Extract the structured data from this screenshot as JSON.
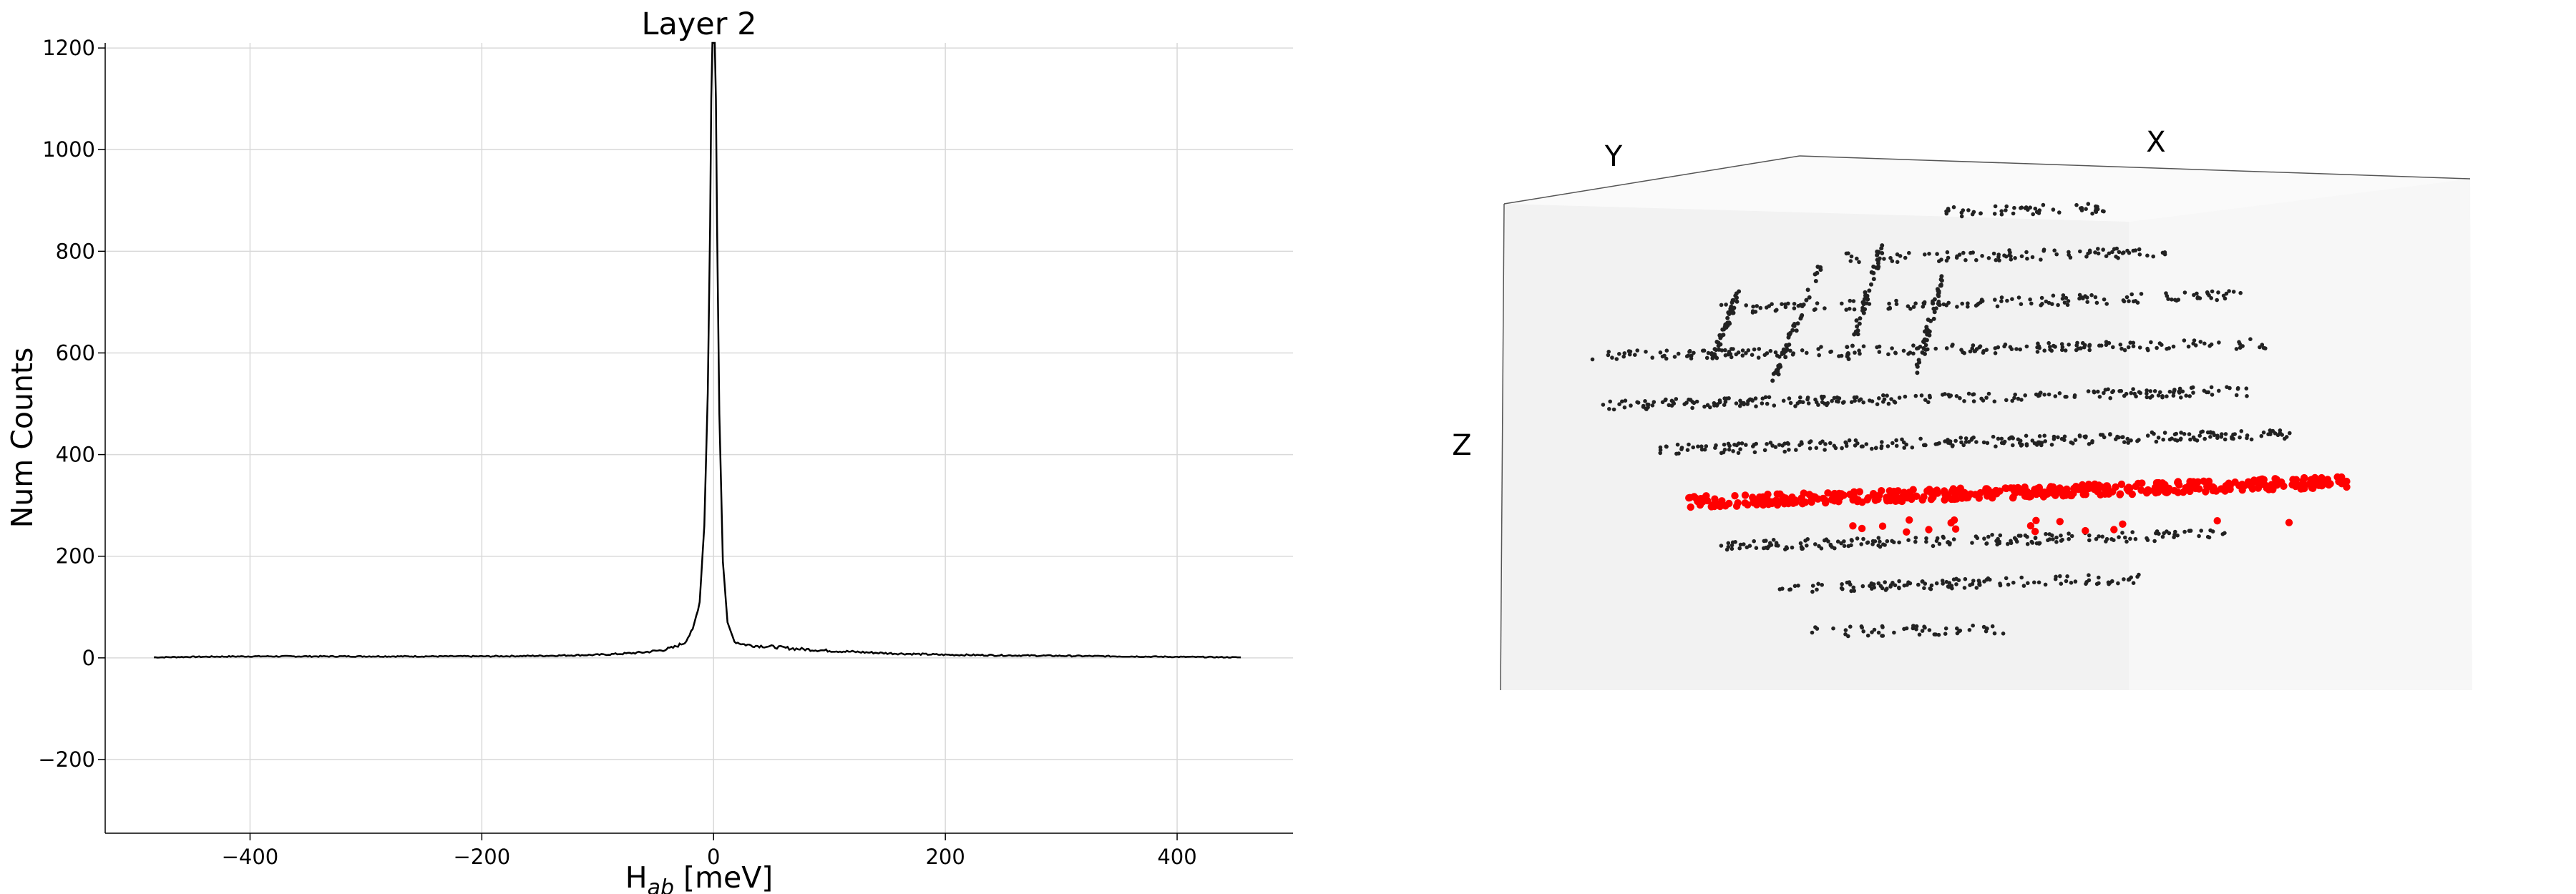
{
  "chart_data": [
    {
      "type": "line",
      "title": "Layer 2",
      "xlabel_main": "H",
      "xlabel_sub": "ab",
      "xlabel_unit": " [meV]",
      "ylabel": "Num Counts",
      "xlim": [
        -525,
        500
      ],
      "ylim": [
        -345,
        1210
      ],
      "xticks": [
        -400,
        -200,
        0,
        200,
        400
      ],
      "yticks": [
        -200,
        0,
        200,
        400,
        600,
        800,
        1000,
        1200
      ],
      "xtick_labels": [
        "−400",
        "−200",
        "0",
        "200",
        "400"
      ],
      "ytick_labels": [
        "−200",
        "0",
        "200",
        "400",
        "600",
        "800",
        "1000",
        "1200"
      ],
      "grid": true,
      "line_color": "#000000",
      "series": [
        {
          "x": [
            -483,
            -450,
            -400,
            -350,
            -300,
            -250,
            -200,
            -150,
            -100,
            -80,
            -60,
            -45,
            -35,
            -25,
            -18,
            -12,
            -8,
            -5,
            -3,
            -2,
            -1,
            0,
            1,
            2,
            3,
            5,
            8,
            12,
            18,
            25,
            35,
            50,
            70,
            100,
            150,
            200,
            250,
            300,
            350,
            400,
            455
          ],
          "y": [
            1,
            2,
            3,
            3,
            3,
            3,
            3,
            4,
            6,
            8,
            11,
            15,
            20,
            30,
            55,
            110,
            260,
            520,
            850,
            1100,
            1210,
            1210,
            1210,
            1100,
            850,
            480,
            190,
            70,
            32,
            27,
            24,
            22,
            18,
            14,
            9,
            6,
            5,
            4,
            3,
            2,
            1
          ]
        }
      ]
    },
    {
      "type": "scatter",
      "title": "",
      "axis_labels": {
        "x": "X",
        "y": "Y",
        "z": "Z"
      },
      "colors": {
        "other_points": "#222222",
        "highlighted_points": "#ff0000",
        "pane": "#f2f2f2"
      },
      "series": [
        {
          "name": "",
          "color": "#222222"
        },
        {
          "name": "",
          "color": "#ff0000"
        }
      ]
    }
  ]
}
